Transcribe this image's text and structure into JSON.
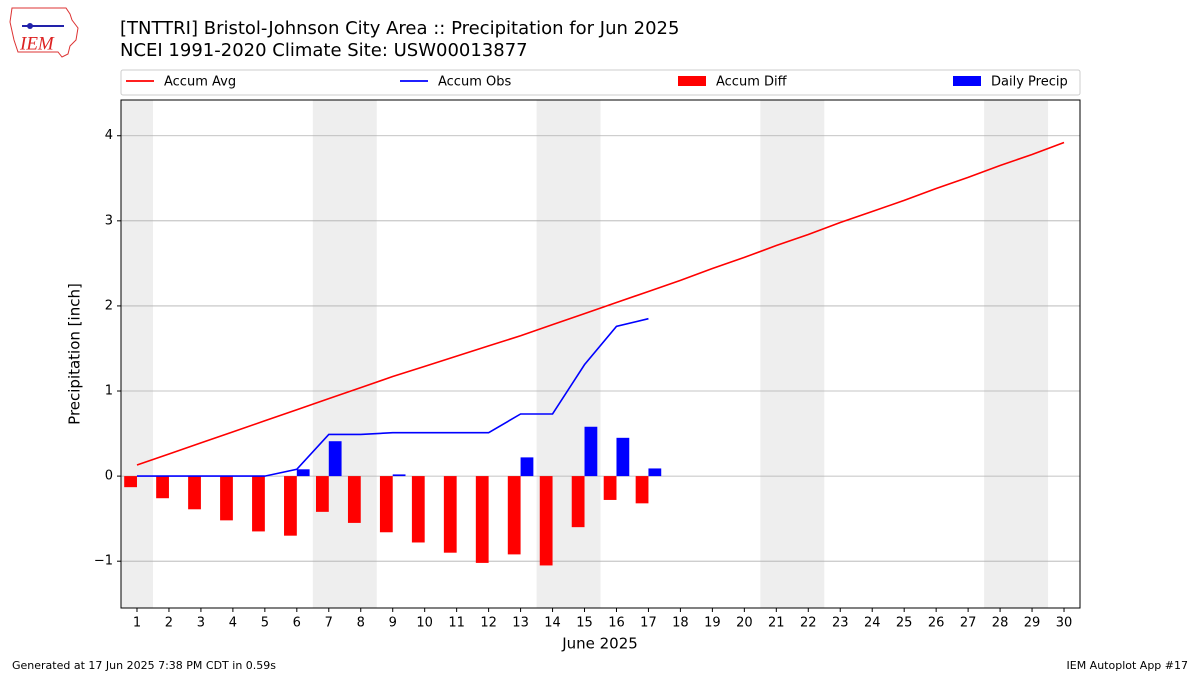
{
  "logo_text": "IEM",
  "footer_left": "Generated at 17 Jun 2025 7:38 PM CDT in 0.59s",
  "footer_right": "IEM Autoplot App #17",
  "chart_data": {
    "type": "combo",
    "title": "[TNTTRI] Bristol-Johnson City Area :: Precipitation for Jun 2025",
    "subtitle": "NCEI 1991-2020 Climate Site: USW00013877",
    "x_label": "June 2025",
    "y_label": "Precipitation [inch]",
    "x": [
      1,
      2,
      3,
      4,
      5,
      6,
      7,
      8,
      9,
      10,
      11,
      12,
      13,
      14,
      15,
      16,
      17,
      18,
      19,
      20,
      21,
      22,
      23,
      24,
      25,
      26,
      27,
      28,
      29,
      30
    ],
    "xlim": [
      0.5,
      30.5
    ],
    "xticks": [
      1,
      2,
      3,
      4,
      5,
      6,
      7,
      8,
      9,
      10,
      11,
      12,
      13,
      14,
      15,
      16,
      17,
      18,
      19,
      20,
      21,
      22,
      23,
      24,
      25,
      26,
      27,
      28,
      29,
      30
    ],
    "ylim": [
      -1.55,
      4.42
    ],
    "yticks": [
      {
        "value": -1,
        "label": "−1"
      },
      0,
      1,
      2,
      3,
      4
    ],
    "grid": true,
    "shaded_spans": [
      [
        0.5,
        1.5
      ],
      [
        6.5,
        8.5
      ],
      [
        13.5,
        15.5
      ],
      [
        20.5,
        22.5
      ],
      [
        27.5,
        29.5
      ]
    ],
    "shade_color": "#eeeeee",
    "legend": "top",
    "series": [
      {
        "name": "Accum Avg",
        "type": "line",
        "color": "#ff0000",
        "values": [
          0.13,
          0.26,
          0.39,
          0.52,
          0.65,
          0.78,
          0.91,
          1.04,
          1.17,
          1.29,
          1.41,
          1.53,
          1.65,
          1.78,
          1.91,
          2.04,
          2.17,
          2.3,
          2.44,
          2.57,
          2.71,
          2.84,
          2.98,
          3.11,
          3.24,
          3.38,
          3.51,
          3.65,
          3.78,
          3.92
        ]
      },
      {
        "name": "Accum Obs",
        "type": "line",
        "color": "#0000ff",
        "values": [
          0,
          0,
          0,
          0,
          0,
          0.08,
          0.49,
          0.49,
          0.51,
          0.51,
          0.51,
          0.51,
          0.73,
          0.73,
          1.31,
          1.76,
          1.85,
          null,
          null,
          null,
          null,
          null,
          null,
          null,
          null,
          null,
          null,
          null,
          null,
          null
        ]
      },
      {
        "name": "Accum Diff",
        "type": "bar",
        "offset": "left",
        "color": "#ff0000",
        "values": [
          -0.13,
          -0.26,
          -0.39,
          -0.52,
          -0.65,
          -0.7,
          -0.42,
          -0.55,
          -0.66,
          -0.78,
          -0.9,
          -1.02,
          -0.92,
          -1.05,
          -0.6,
          -0.28,
          -0.32,
          null,
          null,
          null,
          null,
          null,
          null,
          null,
          null,
          null,
          null,
          null,
          null,
          null
        ]
      },
      {
        "name": "Daily Precip",
        "type": "bar",
        "offset": "right",
        "color": "#0000ff",
        "values": [
          0,
          0,
          0,
          0,
          0,
          0.08,
          0.41,
          0,
          0.02,
          0,
          0,
          0,
          0.22,
          0,
          0.58,
          0.45,
          0.09,
          null,
          null,
          null,
          null,
          null,
          null,
          null,
          null,
          null,
          null,
          null,
          null,
          null
        ]
      }
    ]
  }
}
